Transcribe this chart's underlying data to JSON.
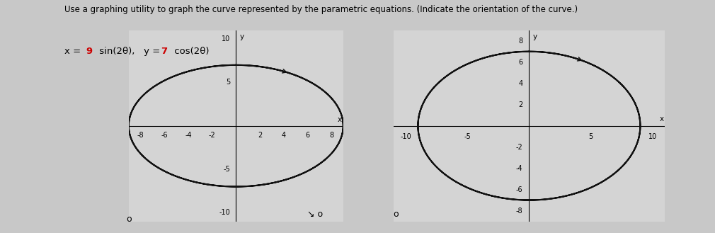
{
  "title_line1": "Use a graphing utility to graph the curve represented by the parametric equations. (Indicate the orientation of the curve.)",
  "bg_color": "#c8c8c8",
  "plot_bg": "#d4d4d4",
  "left": {
    "xlim": [
      -9,
      9
    ],
    "ylim": [
      -11,
      11
    ],
    "xticks": [
      -8,
      -6,
      -4,
      -2,
      2,
      4,
      6,
      8
    ],
    "yticks": [
      -10,
      -5,
      5,
      10
    ],
    "xlabel": "x",
    "ylabel": "y"
  },
  "right": {
    "xlim": [
      -11,
      11
    ],
    "ylim": [
      -9,
      9
    ],
    "xticks": [
      -10,
      -5,
      5,
      10
    ],
    "yticks": [
      -8,
      -6,
      -4,
      -2,
      2,
      4,
      6,
      8
    ],
    "xlabel": "x",
    "ylabel": "y"
  },
  "ellipse_a": 9,
  "ellipse_b": 7,
  "curve_color": "#111111",
  "curve_lw": 1.5,
  "title_fontsize": 8.5,
  "tick_fontsize": 7,
  "label_fontsize": 7.5
}
